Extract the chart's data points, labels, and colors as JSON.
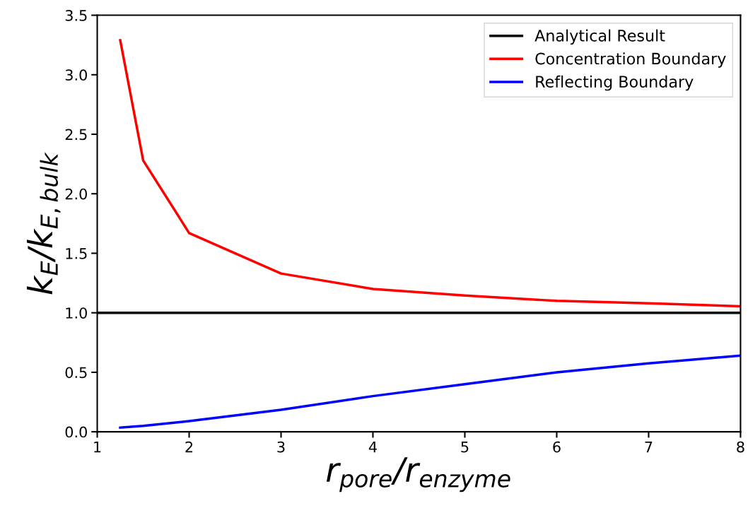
{
  "chart_data": {
    "type": "line",
    "xlabel": "r$_{pore}$/r$_{enzyme}$",
    "ylabel": "k$_{E}$/k$_{E,bulk}$",
    "series": [
      {
        "name": "Analytical Result",
        "color": "#000000",
        "x": [
          1,
          8
        ],
        "values": [
          1.0,
          1.0
        ]
      },
      {
        "name": "Concentration Boundary",
        "color": "#ff0000",
        "x": [
          1.25,
          1.5,
          2,
          3,
          4,
          5,
          6,
          7,
          8
        ],
        "values": [
          3.29,
          2.28,
          1.67,
          1.33,
          1.2,
          1.145,
          1.1,
          1.08,
          1.055
        ]
      },
      {
        "name": "Reflecting Boundary",
        "color": "#0000ff",
        "x": [
          1.25,
          1.5,
          2,
          3,
          4,
          5,
          6,
          7,
          8
        ],
        "values": [
          0.035,
          0.05,
          0.09,
          0.185,
          0.3,
          0.4,
          0.5,
          0.575,
          0.64
        ]
      }
    ],
    "xlim": [
      1,
      8
    ],
    "xticks": [
      1,
      2,
      3,
      4,
      5,
      6,
      7,
      8
    ],
    "ylim": [
      0,
      3.5
    ],
    "yticks": [
      {
        "value": 0,
        "label": "0.0"
      },
      {
        "value": 0.5,
        "label": "0.5"
      },
      {
        "value": 1,
        "label": "1.0"
      },
      {
        "value": 1.5,
        "label": "1.5"
      },
      {
        "value": 2,
        "label": "2.0"
      },
      {
        "value": 2.5,
        "label": "2.5"
      },
      {
        "value": 3,
        "label": "3.0"
      },
      {
        "value": 3.5,
        "label": "3.5"
      }
    ],
    "grid": false,
    "legend": "top right",
    "marker": "none",
    "line_style": "solid"
  }
}
